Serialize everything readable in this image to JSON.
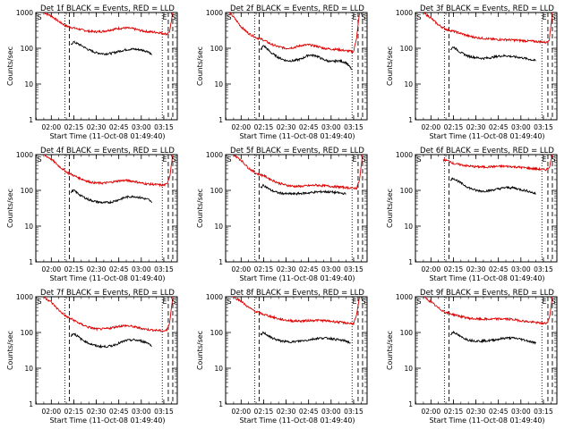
{
  "chart_data": [
    {
      "type": "line",
      "title": "Det 1f BLACK = Events, RED = LLD",
      "xlabel": "Start Time (11-Oct-08 01:49:40)",
      "ylabel": "Counts/sec",
      "yscale": "log",
      "ylim": [
        1,
        1000
      ],
      "ytick_labels": [
        "1",
        "10",
        "100",
        "1000"
      ],
      "xlim": [
        "01:49:40",
        "03:24:00"
      ],
      "xtick_labels": [
        "02:00",
        "02:15",
        "02:30",
        "02:45",
        "03:00",
        "03:15"
      ],
      "markers": [
        "S",
        "E",
        "S"
      ],
      "series": [
        {
          "color": "#dd0000",
          "x": [
            "01:55",
            "02:00",
            "02:05",
            "02:10",
            "02:15",
            "02:20",
            "02:25",
            "02:30",
            "02:35",
            "02:40",
            "02:45",
            "02:50",
            "02:55",
            "03:00",
            "03:05",
            "03:10",
            "03:15",
            "03:17",
            "03:19",
            "03:21"
          ],
          "y": [
            1000,
            800,
            560,
            420,
            370,
            330,
            300,
            290,
            300,
            330,
            360,
            370,
            350,
            310,
            290,
            280,
            260,
            250,
            300,
            1000
          ]
        },
        {
          "color": "#000000",
          "x": [
            "02:13",
            "02:15",
            "02:20",
            "02:25",
            "02:30",
            "02:35",
            "02:40",
            "02:45",
            "02:50",
            "02:55",
            "03:00",
            "03:05",
            "03:07"
          ],
          "y": [
            130,
            150,
            120,
            90,
            75,
            70,
            72,
            82,
            92,
            95,
            90,
            80,
            65
          ]
        }
      ]
    },
    {
      "type": "line",
      "title": "Det 2f BLACK = Events, RED = LLD",
      "xlabel": "Start Time (11-Oct-08 01:49:40)",
      "ylabel": "Counts/sec",
      "yscale": "log",
      "ylim": [
        1,
        1000
      ],
      "ytick_labels": [
        "1",
        "10",
        "100",
        "1000"
      ],
      "xlim": [
        "01:49:40",
        "03:24:00"
      ],
      "xtick_labels": [
        "02:00",
        "02:15",
        "02:30",
        "02:45",
        "03:00",
        "03:15"
      ],
      "markers": [
        "S",
        "E",
        "S"
      ],
      "series": [
        {
          "color": "#dd0000",
          "x": [
            "01:52",
            "01:55",
            "02:00",
            "02:05",
            "02:10",
            "02:15",
            "02:20",
            "02:25",
            "02:30",
            "02:35",
            "02:40",
            "02:45",
            "02:50",
            "02:55",
            "03:00",
            "03:05",
            "03:10",
            "03:15",
            "03:17",
            "03:19"
          ],
          "y": [
            1000,
            750,
            400,
            260,
            200,
            170,
            130,
            110,
            100,
            105,
            120,
            125,
            115,
            100,
            95,
            92,
            85,
            80,
            200,
            1000
          ]
        },
        {
          "color": "#000000",
          "x": [
            "02:13",
            "02:15",
            "02:20",
            "02:25",
            "02:30",
            "02:35",
            "02:40",
            "02:45",
            "02:50",
            "02:55",
            "03:00",
            "03:05",
            "03:10",
            "03:14"
          ],
          "y": [
            90,
            120,
            75,
            55,
            45,
            45,
            50,
            65,
            62,
            48,
            42,
            45,
            40,
            25
          ]
        }
      ]
    },
    {
      "type": "line",
      "title": "Det 3f BLACK = Events, RED = LLD",
      "xlabel": "Start Time (11-Oct-08 01:49:40)",
      "ylabel": "Counts/sec",
      "yscale": "log",
      "ylim": [
        1,
        1000
      ],
      "ytick_labels": [
        "1",
        "10",
        "100",
        "1000"
      ],
      "xlim": [
        "01:49:40",
        "03:24:00"
      ],
      "xtick_labels": [
        "02:00",
        "02:15",
        "02:30",
        "02:45",
        "03:00",
        "03:15"
      ],
      "markers": [
        "S",
        "E",
        "S"
      ],
      "series": [
        {
          "color": "#dd0000",
          "x": [
            "01:55",
            "02:00",
            "02:05",
            "02:10",
            "02:15",
            "02:20",
            "02:25",
            "02:30",
            "02:35",
            "02:40",
            "02:45",
            "02:50",
            "02:55",
            "03:00",
            "03:05",
            "03:10",
            "03:15",
            "03:17",
            "03:19",
            "03:21"
          ],
          "y": [
            1000,
            700,
            450,
            340,
            300,
            260,
            220,
            200,
            190,
            180,
            175,
            175,
            170,
            165,
            160,
            155,
            150,
            145,
            180,
            1000
          ]
        },
        {
          "color": "#000000",
          "x": [
            "02:13",
            "02:15",
            "02:20",
            "02:25",
            "02:30",
            "02:35",
            "02:40",
            "02:45",
            "02:50",
            "02:55",
            "03:00",
            "03:05",
            "03:10"
          ],
          "y": [
            90,
            110,
            75,
            60,
            55,
            52,
            55,
            60,
            62,
            58,
            55,
            50,
            45
          ]
        }
      ]
    },
    {
      "type": "line",
      "title": "Det 4f BLACK = Events, RED = LLD",
      "xlabel": "Start Time (11-Oct-08 01:49:40)",
      "ylabel": "Counts/sec",
      "yscale": "log",
      "ylim": [
        1,
        1000
      ],
      "ytick_labels": [
        "1",
        "10",
        "100",
        "1000"
      ],
      "xlim": [
        "01:49:40",
        "03:24:00"
      ],
      "xtick_labels": [
        "02:00",
        "02:15",
        "02:30",
        "02:45",
        "03:00",
        "03:15"
      ],
      "markers": [
        "S",
        "E",
        "S"
      ],
      "series": [
        {
          "color": "#dd0000",
          "x": [
            "01:55",
            "02:00",
            "02:05",
            "02:10",
            "02:15",
            "02:20",
            "02:25",
            "02:30",
            "02:35",
            "02:40",
            "02:45",
            "02:50",
            "02:55",
            "03:00",
            "03:05",
            "03:10",
            "03:15",
            "03:17",
            "03:19",
            "03:21"
          ],
          "y": [
            1000,
            750,
            480,
            330,
            260,
            210,
            175,
            160,
            160,
            170,
            185,
            190,
            180,
            160,
            150,
            145,
            140,
            150,
            250,
            1000
          ]
        },
        {
          "color": "#000000",
          "x": [
            "02:13",
            "02:15",
            "02:20",
            "02:25",
            "02:30",
            "02:35",
            "02:40",
            "02:45",
            "02:50",
            "02:55",
            "03:00",
            "03:05",
            "03:07"
          ],
          "y": [
            90,
            100,
            70,
            55,
            48,
            45,
            47,
            55,
            65,
            68,
            62,
            55,
            45
          ]
        }
      ]
    },
    {
      "type": "line",
      "title": "Det 5f BLACK = Events, RED = LLD",
      "xlabel": "Start Time (11-Oct-08 01:49:40)",
      "ylabel": "Counts/sec",
      "yscale": "log",
      "ylim": [
        1,
        1000
      ],
      "ytick_labels": [
        "1",
        "10",
        "100",
        "1000"
      ],
      "xlim": [
        "01:49:40",
        "03:24:00"
      ],
      "xtick_labels": [
        "02:00",
        "02:15",
        "02:30",
        "02:45",
        "03:00",
        "03:15"
      ],
      "markers": [
        "S",
        "E",
        "S"
      ],
      "series": [
        {
          "color": "#dd0000",
          "x": [
            "01:55",
            "02:00",
            "02:05",
            "02:10",
            "02:15",
            "02:20",
            "02:25",
            "02:30",
            "02:35",
            "02:40",
            "02:45",
            "02:50",
            "02:55",
            "03:00",
            "03:05",
            "03:10",
            "03:15",
            "03:17",
            "03:19",
            "03:21"
          ],
          "y": [
            1000,
            700,
            420,
            300,
            260,
            200,
            160,
            140,
            130,
            130,
            135,
            140,
            135,
            130,
            125,
            120,
            115,
            115,
            200,
            1000
          ]
        },
        {
          "color": "#000000",
          "x": [
            "02:13",
            "02:15",
            "02:20",
            "02:25",
            "02:30",
            "02:35",
            "02:40",
            "02:45",
            "02:50",
            "02:55",
            "03:00",
            "03:05",
            "03:10"
          ],
          "y": [
            120,
            140,
            100,
            85,
            80,
            80,
            82,
            85,
            90,
            92,
            90,
            85,
            80
          ]
        }
      ]
    },
    {
      "type": "line",
      "title": "Det 6f BLACK = Events, RED = LLD",
      "xlabel": "Start Time (11-Oct-08 01:49:40)",
      "ylabel": "Counts/sec",
      "yscale": "log",
      "ylim": [
        1,
        1000
      ],
      "ytick_labels": [
        "1",
        "10",
        "100",
        "1000"
      ],
      "xlim": [
        "01:49:40",
        "03:24:00"
      ],
      "xtick_labels": [
        "02:00",
        "02:15",
        "02:30",
        "02:45",
        "03:00",
        "03:15"
      ],
      "markers": [
        "S",
        "E",
        "S"
      ],
      "series": [
        {
          "color": "#dd0000",
          "x": [
            "02:08",
            "02:13",
            "02:15",
            "02:20",
            "02:25",
            "02:30",
            "02:35",
            "02:40",
            "02:45",
            "02:50",
            "02:55",
            "03:00",
            "03:05",
            "03:10",
            "03:15",
            "03:17",
            "03:19",
            "03:21"
          ],
          "y": [
            720,
            650,
            560,
            520,
            480,
            460,
            450,
            460,
            470,
            470,
            460,
            440,
            420,
            400,
            380,
            380,
            450,
            1000
          ]
        },
        {
          "color": "#000000",
          "x": [
            "02:13",
            "02:15",
            "02:20",
            "02:25",
            "02:30",
            "02:35",
            "02:40",
            "02:45",
            "02:50",
            "02:55",
            "03:00",
            "03:05",
            "03:10"
          ],
          "y": [
            200,
            220,
            160,
            120,
            100,
            95,
            100,
            110,
            120,
            118,
            105,
            95,
            80
          ]
        }
      ]
    },
    {
      "type": "line",
      "title": "Det 7f BLACK = Events, RED = LLD",
      "xlabel": "Start Time (11-Oct-08 01:49:40)",
      "ylabel": "Counts/sec",
      "yscale": "log",
      "ylim": [
        1,
        1000
      ],
      "ytick_labels": [
        "1",
        "10",
        "100",
        "1000"
      ],
      "xlim": [
        "01:49:40",
        "03:24:00"
      ],
      "xtick_labels": [
        "02:00",
        "02:15",
        "02:30",
        "02:45",
        "03:00",
        "03:15"
      ],
      "markers": [
        "S",
        "E",
        "S"
      ],
      "series": [
        {
          "color": "#dd0000",
          "x": [
            "01:55",
            "02:00",
            "02:05",
            "02:10",
            "02:15",
            "02:20",
            "02:25",
            "02:30",
            "02:35",
            "02:40",
            "02:45",
            "02:50",
            "02:55",
            "03:00",
            "03:05",
            "03:10",
            "03:15",
            "03:17",
            "03:19",
            "03:21"
          ],
          "y": [
            1000,
            700,
            420,
            280,
            220,
            170,
            140,
            125,
            125,
            135,
            150,
            155,
            145,
            130,
            120,
            115,
            110,
            115,
            200,
            1000
          ]
        },
        {
          "color": "#000000",
          "x": [
            "02:13",
            "02:15",
            "02:20",
            "02:25",
            "02:30",
            "02:35",
            "02:40",
            "02:45",
            "02:50",
            "02:55",
            "03:00",
            "03:05",
            "03:07"
          ],
          "y": [
            80,
            95,
            65,
            50,
            42,
            40,
            42,
            50,
            60,
            62,
            58,
            50,
            40
          ]
        }
      ]
    },
    {
      "type": "line",
      "title": "Det 8f BLACK = Events, RED = LLD",
      "xlabel": "Start Time (11-Oct-08 01:49:40)",
      "ylabel": "Counts/sec",
      "yscale": "log",
      "ylim": [
        1,
        1000
      ],
      "ytick_labels": [
        "1",
        "10",
        "100",
        "1000"
      ],
      "xlim": [
        "01:49:40",
        "03:24:00"
      ],
      "xtick_labels": [
        "02:00",
        "02:15",
        "02:30",
        "02:45",
        "03:00",
        "03:15"
      ],
      "markers": [
        "S",
        "E",
        "S"
      ],
      "series": [
        {
          "color": "#dd0000",
          "x": [
            "01:55",
            "02:00",
            "02:05",
            "02:10",
            "02:15",
            "02:20",
            "02:25",
            "02:30",
            "02:35",
            "02:40",
            "02:45",
            "02:50",
            "02:55",
            "03:00",
            "03:05",
            "03:10",
            "03:15",
            "03:17",
            "03:19"
          ],
          "y": [
            1000,
            750,
            500,
            380,
            320,
            280,
            240,
            220,
            210,
            210,
            215,
            220,
            215,
            205,
            195,
            185,
            175,
            300,
            1000
          ]
        },
        {
          "color": "#000000",
          "x": [
            "02:13",
            "02:15",
            "02:20",
            "02:25",
            "02:30",
            "02:35",
            "02:40",
            "02:45",
            "02:50",
            "02:55",
            "03:00",
            "03:05",
            "03:10",
            "03:13"
          ],
          "y": [
            85,
            100,
            72,
            60,
            55,
            55,
            58,
            62,
            68,
            70,
            68,
            62,
            58,
            50
          ]
        }
      ]
    },
    {
      "type": "line",
      "title": "Det 9f BLACK = Events, RED = LLD",
      "xlabel": "Start Time (11-Oct-08 01:49:40)",
      "ylabel": "Counts/sec",
      "yscale": "log",
      "ylim": [
        1,
        1000
      ],
      "ytick_labels": [
        "1",
        "10",
        "100",
        "1000"
      ],
      "xlim": [
        "01:49:40",
        "03:24:00"
      ],
      "xtick_labels": [
        "02:00",
        "02:15",
        "02:30",
        "02:45",
        "03:00",
        "03:15"
      ],
      "markers": [
        "S",
        "E",
        "S"
      ],
      "series": [
        {
          "color": "#dd0000",
          "x": [
            "01:55",
            "02:00",
            "02:05",
            "02:10",
            "02:15",
            "02:20",
            "02:25",
            "02:30",
            "02:35",
            "02:40",
            "02:45",
            "02:50",
            "02:55",
            "03:00",
            "03:05",
            "03:10",
            "03:15",
            "03:17",
            "03:19",
            "03:21"
          ],
          "y": [
            1000,
            720,
            480,
            360,
            320,
            280,
            250,
            240,
            235,
            235,
            240,
            240,
            230,
            215,
            200,
            190,
            180,
            180,
            250,
            1000
          ]
        },
        {
          "color": "#000000",
          "x": [
            "02:13",
            "02:15",
            "02:20",
            "02:25",
            "02:30",
            "02:35",
            "02:40",
            "02:45",
            "02:50",
            "02:55",
            "03:00",
            "03:05",
            "03:10"
          ],
          "y": [
            85,
            105,
            75,
            62,
            58,
            58,
            60,
            65,
            70,
            70,
            65,
            58,
            50
          ]
        }
      ]
    }
  ]
}
